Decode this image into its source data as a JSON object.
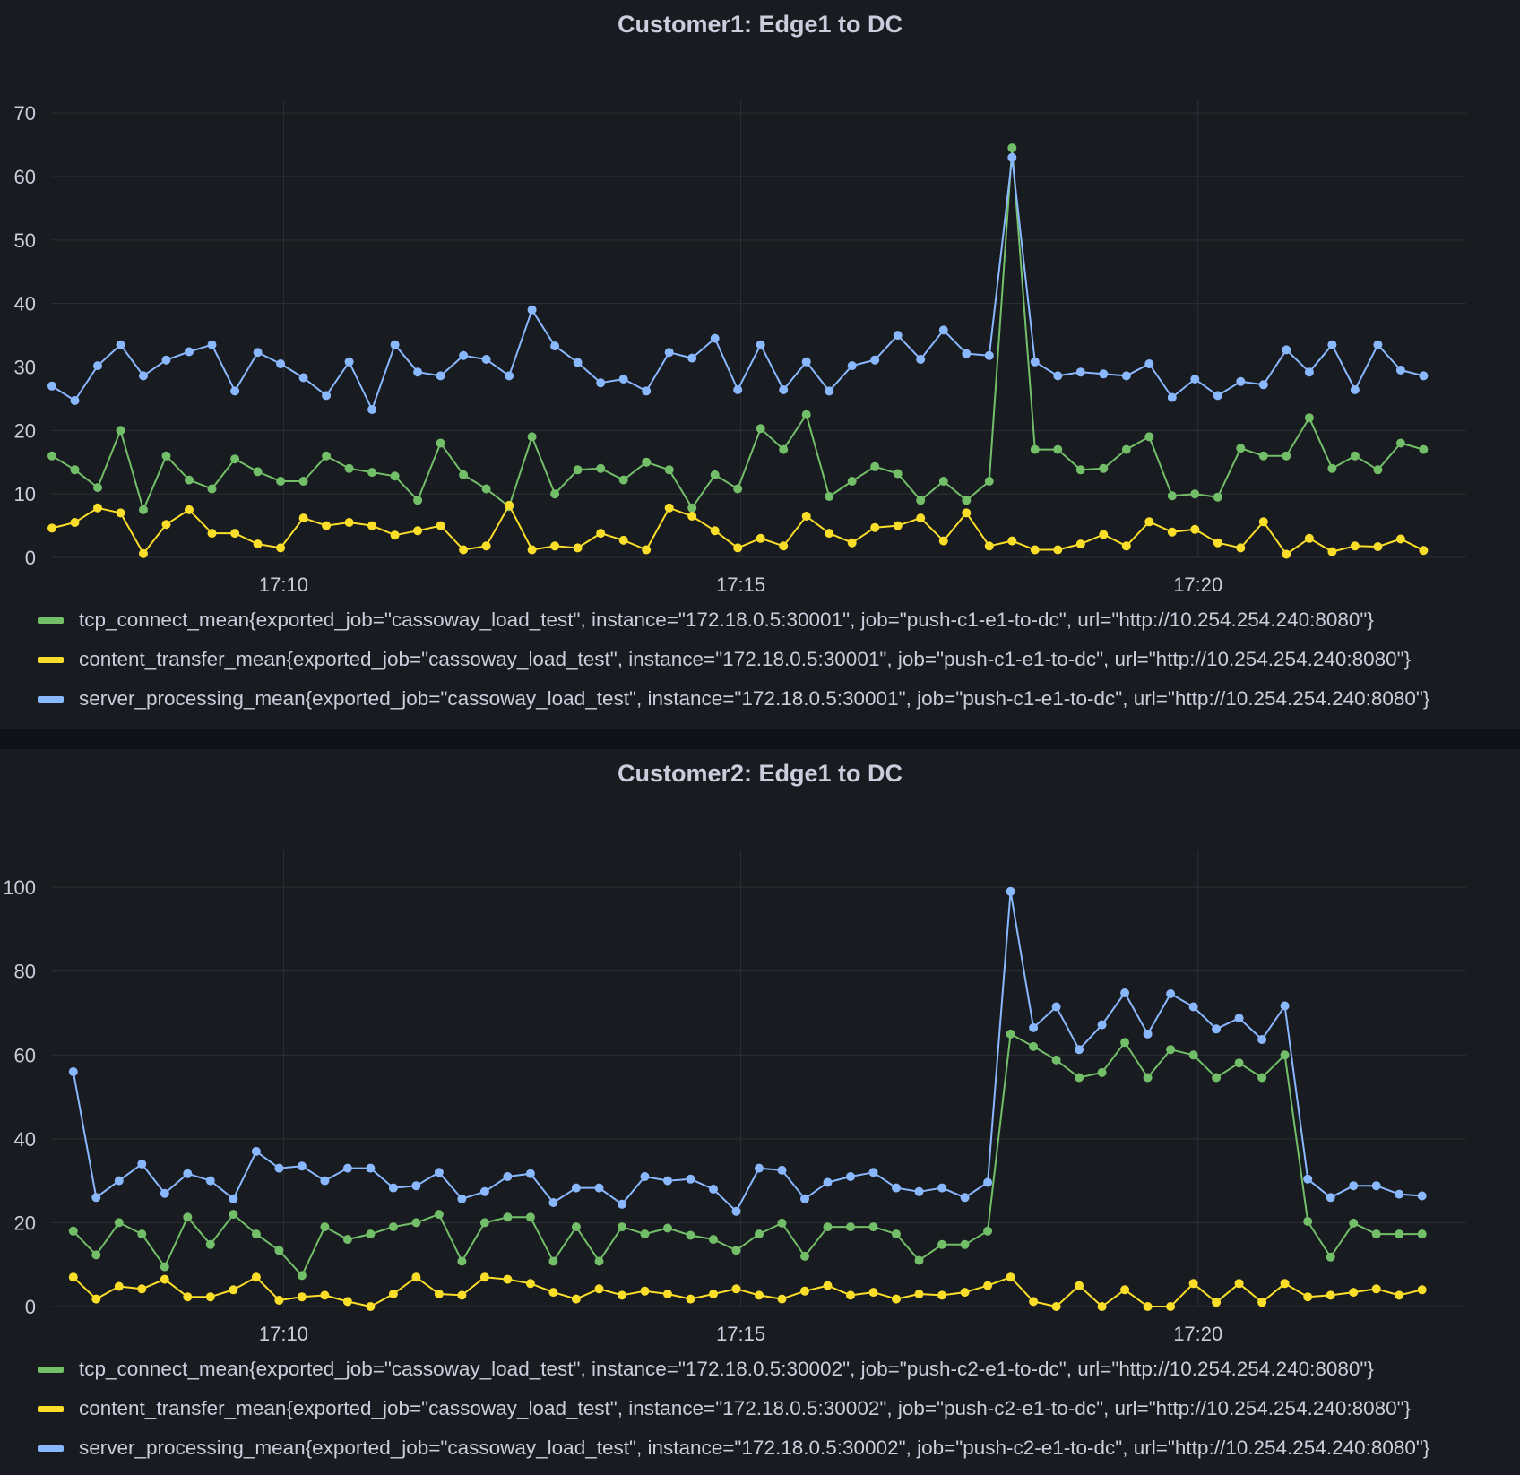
{
  "theme": {
    "background": "#111217",
    "panel": "#181b1f",
    "grid": "#2c2f35",
    "text": "#ccccdc"
  },
  "chart_data": [
    {
      "type": "line",
      "title": "Customer1: Edge1 to DC",
      "x_start": "17:07:28",
      "x_step_seconds": 15,
      "xlim": [
        "17:07:28",
        "17:22:56"
      ],
      "x_ticks": [
        "17:10",
        "17:15",
        "17:20"
      ],
      "ylim": [
        0,
        72
      ],
      "y_ticks": [
        0,
        10,
        20,
        30,
        40,
        50,
        60,
        70
      ],
      "grid": true,
      "legend_placement": "bottom",
      "series": [
        {
          "name": "tcp_connect_mean{exported_job=\"cassoway_load_test\", instance=\"172.18.0.5:30001\", job=\"push-c1-e1-to-dc\", url=\"http://10.254.254.240:8080\"}",
          "color": "#73bf69",
          "values": [
            16,
            13.8,
            11,
            20,
            7.5,
            16,
            12.2,
            10.8,
            15.5,
            13.5,
            12,
            12,
            16,
            14,
            13.4,
            12.8,
            9,
            18,
            13,
            10.8,
            8,
            19,
            10,
            13.8,
            14,
            12.2,
            15,
            13.8,
            7.8,
            13,
            10.8,
            20.3,
            17,
            22.5,
            9.6,
            12,
            14.3,
            13.2,
            9,
            12,
            9,
            12,
            64.5,
            17,
            17,
            13.8,
            14,
            17,
            19,
            9.7,
            10,
            9.5,
            17.2,
            16,
            16,
            22,
            14,
            16,
            13.8,
            18,
            17
          ]
        },
        {
          "name": "content_transfer_mean{exported_job=\"cassoway_load_test\", instance=\"172.18.0.5:30001\", job=\"push-c1-e1-to-dc\", url=\"http://10.254.254.240:8080\"}",
          "color": "#fade2a",
          "values": [
            4.6,
            5.5,
            7.8,
            7,
            0.6,
            5.2,
            7.5,
            3.8,
            3.8,
            2.1,
            1.5,
            6.2,
            5,
            5.5,
            5,
            3.5,
            4.2,
            5,
            1.2,
            1.8,
            8.2,
            1.2,
            1.8,
            1.5,
            3.8,
            2.7,
            1.2,
            7.8,
            6.5,
            4.2,
            1.5,
            3,
            1.8,
            6.5,
            3.8,
            2.3,
            4.7,
            5,
            6.2,
            2.6,
            7,
            1.8,
            2.6,
            1.2,
            1.2,
            2.1,
            3.6,
            1.8,
            5.6,
            4,
            4.4,
            2.3,
            1.5,
            5.6,
            0.5,
            3,
            0.9,
            1.8,
            1.7,
            2.9,
            1.1
          ]
        },
        {
          "name": "server_processing_mean{exported_job=\"cassoway_load_test\", instance=\"172.18.0.5:30001\", job=\"push-c1-e1-to-dc\", url=\"http://10.254.254.240:8080\"}",
          "color": "#8ab8ff",
          "values": [
            27,
            24.7,
            30.2,
            33.5,
            28.6,
            31.1,
            32.4,
            33.5,
            26.2,
            32.3,
            30.5,
            28.3,
            25.5,
            30.8,
            23.3,
            33.5,
            29.2,
            28.6,
            31.8,
            31.2,
            28.6,
            39,
            33.3,
            30.7,
            27.5,
            28.1,
            26.2,
            32.3,
            31.4,
            34.5,
            26.4,
            33.5,
            26.4,
            30.8,
            26.2,
            30.2,
            31.1,
            35,
            31.2,
            35.8,
            32.1,
            31.8,
            63,
            30.8,
            28.6,
            29.2,
            28.9,
            28.6,
            30.5,
            25.2,
            28.1,
            25.5,
            27.7,
            27.2,
            32.7,
            29.2,
            33.5,
            26.4,
            33.5,
            29.5,
            28.6
          ]
        }
      ]
    },
    {
      "type": "line",
      "title": "Customer2: Edge1 to DC",
      "x_start": "17:07:42",
      "x_step_seconds": 15,
      "xlim": [
        "17:07:28",
        "17:22:56"
      ],
      "x_ticks": [
        "17:10",
        "17:15",
        "17:20"
      ],
      "ylim": [
        0,
        109
      ],
      "y_ticks": [
        0,
        20,
        40,
        60,
        80,
        100
      ],
      "grid": true,
      "legend_placement": "bottom",
      "series": [
        {
          "name": "tcp_connect_mean{exported_job=\"cassoway_load_test\", instance=\"172.18.0.5:30002\", job=\"push-c2-e1-to-dc\", url=\"http://10.254.254.240:8080\"}",
          "color": "#73bf69",
          "values": [
            18,
            12.3,
            20,
            17.3,
            9.5,
            21.3,
            14.8,
            22,
            17.3,
            13.4,
            7.4,
            19,
            16,
            17.3,
            19,
            20,
            22,
            10.8,
            20,
            21.3,
            21.3,
            10.8,
            19,
            10.8,
            19,
            17.3,
            18.7,
            17,
            16,
            13.4,
            17.3,
            19.9,
            12,
            19,
            19,
            19,
            17.3,
            11,
            14.8,
            14.8,
            18,
            65,
            62,
            58.8,
            54.6,
            55.8,
            63,
            54.6,
            61.3,
            60,
            54.6,
            58.1,
            54.6,
            60,
            20.3,
            11.8,
            19.9,
            17.3,
            17.3,
            17.3
          ]
        },
        {
          "name": "content_transfer_mean{exported_job=\"cassoway_load_test\", instance=\"172.18.0.5:30002\", job=\"push-c2-e1-to-dc\", url=\"http://10.254.254.240:8080\"}",
          "color": "#fade2a",
          "values": [
            7,
            1.8,
            4.8,
            4.2,
            6.5,
            2.3,
            2.3,
            4,
            7,
            1.5,
            2.3,
            2.7,
            1.2,
            0,
            3,
            7,
            3,
            2.7,
            7,
            6.5,
            5.5,
            3.4,
            1.8,
            4.2,
            2.7,
            3.7,
            3,
            1.8,
            3,
            4.2,
            2.7,
            1.8,
            3.7,
            5,
            2.7,
            3.4,
            1.8,
            3,
            2.7,
            3.4,
            5,
            7,
            1.2,
            0,
            5,
            0,
            4,
            0,
            0,
            5.5,
            1,
            5.5,
            1,
            5.5,
            2.3,
            2.7,
            3.4,
            4.2,
            2.7,
            4
          ]
        },
        {
          "name": "server_processing_mean{exported_job=\"cassoway_load_test\", instance=\"172.18.0.5:30002\", job=\"push-c2-e1-to-dc\", url=\"http://10.254.254.240:8080\"}",
          "color": "#8ab8ff",
          "values": [
            56,
            26,
            30,
            34,
            27,
            31.7,
            30,
            25.7,
            37,
            33,
            33.5,
            30,
            33,
            33,
            28.3,
            28.8,
            32,
            25.7,
            27.4,
            31,
            31.7,
            24.8,
            28.3,
            28.3,
            24.4,
            31,
            30,
            30.4,
            28,
            22.7,
            33,
            32.5,
            25.7,
            29.6,
            31,
            32,
            28.3,
            27.4,
            28.3,
            26,
            29.6,
            99,
            66.5,
            71.5,
            61.3,
            67.2,
            74.8,
            65,
            74.6,
            71.5,
            66.2,
            68.8,
            63.7,
            71.7,
            30.4,
            26,
            28.8,
            28.8,
            26.8,
            26.4
          ]
        }
      ]
    }
  ]
}
